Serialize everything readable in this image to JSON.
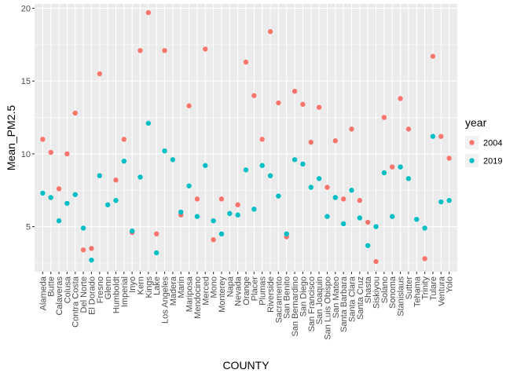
{
  "chart_data": {
    "type": "scatter",
    "title": "",
    "xlabel": "COUNTY",
    "ylabel": "Mean_PM2.5",
    "ylim": [
      1.9,
      20.3
    ],
    "yticks": [
      5,
      10,
      15,
      20
    ],
    "grid": true,
    "legend": {
      "title": "year",
      "placement": "right"
    },
    "categories": [
      "Alameda",
      "Butte",
      "Calaveras",
      "Colusa",
      "Contra Costa",
      "Del Norte",
      "El Dorado",
      "Fresno",
      "Glenn",
      "Humboldt",
      "Imperial",
      "Inyo",
      "Kern",
      "Kings",
      "Lake",
      "Los Angeles",
      "Madera",
      "Marin",
      "Mariposa",
      "Mendocino",
      "Merced",
      "Mono",
      "Monterey",
      "Napa",
      "Nevada",
      "Orange",
      "Placer",
      "Plumas",
      "Riverside",
      "Sacramento",
      "San Benito",
      "San Bernardino",
      "San Diego",
      "San Francisco",
      "San Joaquin",
      "San Luis Obispo",
      "San Mateo",
      "Santa Barbara",
      "Santa Clara",
      "Santa Cruz",
      "Shasta",
      "Siskiyou",
      "Solano",
      "Sonoma",
      "Stanislaus",
      "Sutter",
      "Tehama",
      "Trinity",
      "Tulare",
      "Ventura",
      "Yolo"
    ],
    "series": [
      {
        "name": "2004",
        "color": "#F8766D",
        "values": [
          11.0,
          10.1,
          7.6,
          10.0,
          12.8,
          3.4,
          3.5,
          15.5,
          null,
          8.2,
          11.0,
          4.6,
          17.1,
          19.7,
          4.5,
          17.1,
          null,
          5.8,
          13.3,
          6.9,
          17.2,
          4.1,
          6.9,
          null,
          6.5,
          16.3,
          14.0,
          11.0,
          18.4,
          13.5,
          4.3,
          14.3,
          13.4,
          10.8,
          13.2,
          7.7,
          10.9,
          6.9,
          11.7,
          6.8,
          5.3,
          2.6,
          12.5,
          9.1,
          13.8,
          11.7,
          null,
          2.8,
          16.7,
          11.2,
          9.7
        ]
      },
      {
        "name": "2019",
        "color": "#00BFC4",
        "values": [
          7.3,
          7.0,
          5.4,
          6.6,
          7.2,
          4.9,
          2.7,
          8.5,
          6.5,
          6.8,
          9.5,
          4.7,
          8.4,
          12.1,
          3.2,
          10.2,
          9.6,
          6.0,
          7.8,
          5.7,
          9.2,
          5.4,
          4.5,
          5.9,
          5.8,
          8.9,
          6.2,
          9.2,
          8.5,
          7.1,
          4.5,
          9.6,
          9.3,
          7.7,
          8.3,
          5.7,
          7.0,
          5.2,
          7.5,
          5.6,
          3.7,
          5.0,
          8.7,
          5.7,
          9.1,
          8.3,
          5.5,
          4.9,
          11.2,
          6.7,
          6.8
        ]
      }
    ]
  }
}
